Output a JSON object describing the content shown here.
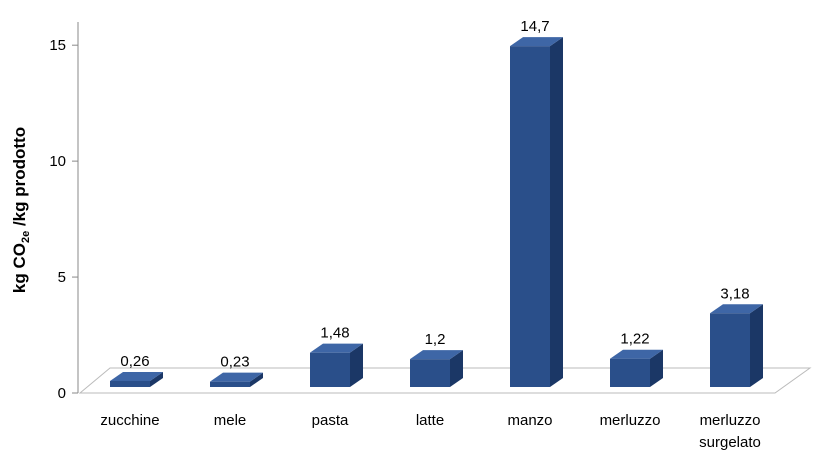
{
  "chart_data": {
    "type": "bar3d",
    "y_label": [
      "kg CO",
      "2e",
      " /kg prodotto"
    ],
    "categories": [
      "zucchine",
      "mele",
      "pasta",
      "latte",
      "manzo",
      "merluzzo",
      "merluzzo surgelato"
    ],
    "values": [
      0.26,
      0.23,
      1.48,
      1.2,
      14.7,
      1.22,
      3.18
    ],
    "value_labels": [
      "0,26",
      "0,23",
      "1,48",
      "1,2",
      "14,7",
      "1,22",
      "3,18"
    ],
    "color": "#2a4f8a",
    "ylim": [
      0,
      16
    ],
    "yticks": [
      0,
      5,
      10,
      15
    ]
  }
}
